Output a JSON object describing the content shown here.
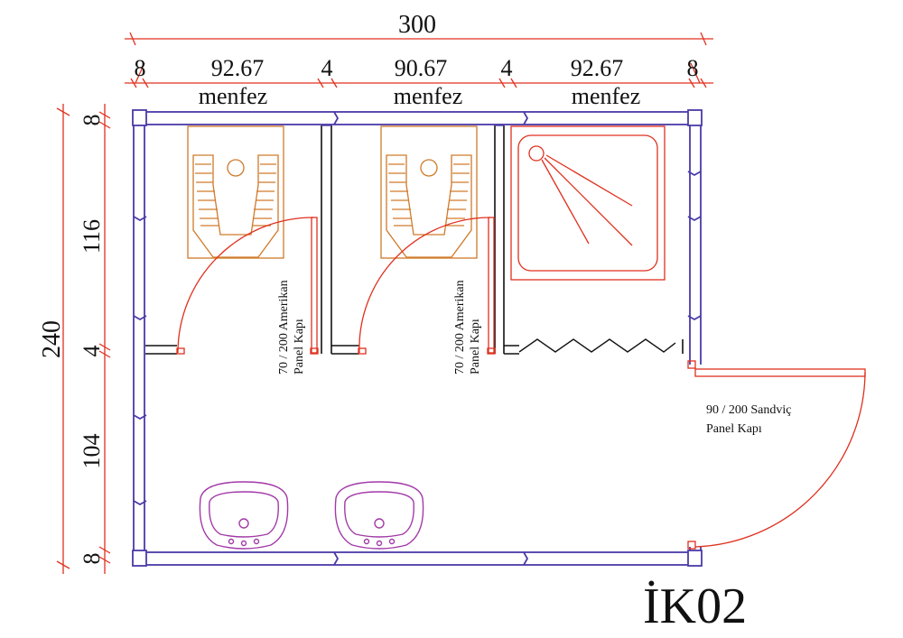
{
  "colors": {
    "dimension": "#e0301e",
    "wall": "#4a3aa8",
    "fixture": "#d07a2a",
    "sink": "#a23aa8",
    "partition": "#111111"
  },
  "dimensions": {
    "overall_width": "300",
    "top": [
      "8",
      "92.67",
      "4",
      "90.67",
      "4",
      "92.67",
      "8"
    ],
    "overall_depth": "240",
    "left": [
      "8",
      "116",
      "4",
      "104",
      "8"
    ]
  },
  "vents": [
    "menfez",
    "menfez",
    "menfez"
  ],
  "doors": {
    "interior_1": [
      "70 / 200 Amerikan",
      "Panel Kapı"
    ],
    "interior_2": [
      "70 / 200 Amerikan",
      "Panel Kapı"
    ],
    "exterior": [
      "90 / 200 Sandviç",
      "Panel Kapı"
    ]
  },
  "title": "İK02"
}
